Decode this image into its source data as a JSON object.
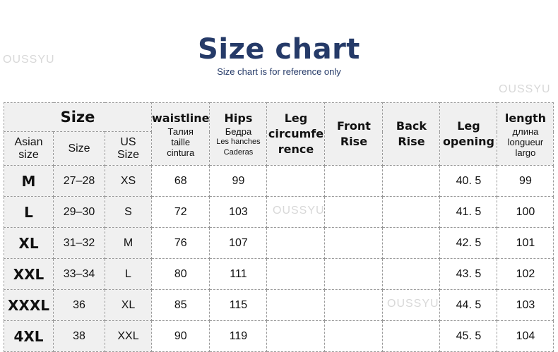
{
  "title": "Size chart",
  "subtitle": "Size chart is for reference only",
  "watermark": "OUSSYU",
  "headers": {
    "size_group": "Size",
    "asian": "Asian size",
    "size": "Size",
    "us": "US Size",
    "waist": "waistline",
    "waist_ru": "Талия",
    "waist_fr": "taille",
    "waist_es": "cintura",
    "hips": "Hips",
    "hips_ru": "Бедра",
    "hips_fr": "Les hanches",
    "hips_es": "Caderas",
    "leg_circ_1": "Leg",
    "leg_circ_2": "circumfe",
    "leg_circ_3": "rence",
    "front_1": "Front",
    "front_2": "Rise",
    "back_1": "Back",
    "back_2": "Rise",
    "open_1": "Leg",
    "open_2": "opening",
    "length": "length",
    "length_ru": "длина",
    "length_fr": "longueur",
    "length_es": "largo"
  },
  "rows": [
    {
      "asian": "M",
      "size": "27–28",
      "us": "XS",
      "waist": "68",
      "hips": "99",
      "leg_circ": "",
      "front": "",
      "back": "",
      "opening": "40. 5",
      "length": "99"
    },
    {
      "asian": "L",
      "size": "29–30",
      "us": "S",
      "waist": "72",
      "hips": "103",
      "leg_circ": "",
      "front": "",
      "back": "",
      "opening": "41. 5",
      "length": "100"
    },
    {
      "asian": "XL",
      "size": "31–32",
      "us": "M",
      "waist": "76",
      "hips": "107",
      "leg_circ": "",
      "front": "",
      "back": "",
      "opening": "42. 5",
      "length": "101"
    },
    {
      "asian": "XXL",
      "size": "33–34",
      "us": "L",
      "waist": "80",
      "hips": "111",
      "leg_circ": "",
      "front": "",
      "back": "",
      "opening": "43. 5",
      "length": "102"
    },
    {
      "asian": "XXXL",
      "size": "36",
      "us": "XL",
      "waist": "85",
      "hips": "115",
      "leg_circ": "",
      "front": "",
      "back": "",
      "opening": "44. 5",
      "length": "103"
    },
    {
      "asian": "4XL",
      "size": "38",
      "us": "XXL",
      "waist": "90",
      "hips": "119",
      "leg_circ": "",
      "front": "",
      "back": "",
      "opening": "45. 5",
      "length": "104"
    }
  ]
}
